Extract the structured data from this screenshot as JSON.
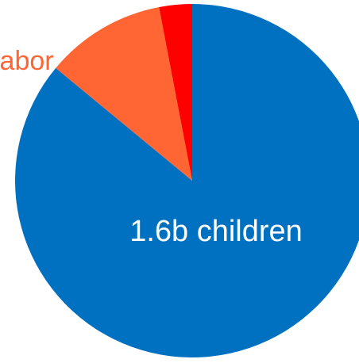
{
  "chart_data": {
    "type": "pie",
    "title": "",
    "start_angle": "12 o'clock, clockwise",
    "slices": [
      {
        "label": "1.6b children",
        "value": 86,
        "color": "#0070C0",
        "label_color": "#ffffff"
      },
      {
        "label": "labor",
        "value": 11,
        "color": "#FF6633",
        "label_color": "#FF6633"
      },
      {
        "label": "",
        "value": 3,
        "color": "#FF0000",
        "label_color": "#FF0000"
      }
    ]
  }
}
